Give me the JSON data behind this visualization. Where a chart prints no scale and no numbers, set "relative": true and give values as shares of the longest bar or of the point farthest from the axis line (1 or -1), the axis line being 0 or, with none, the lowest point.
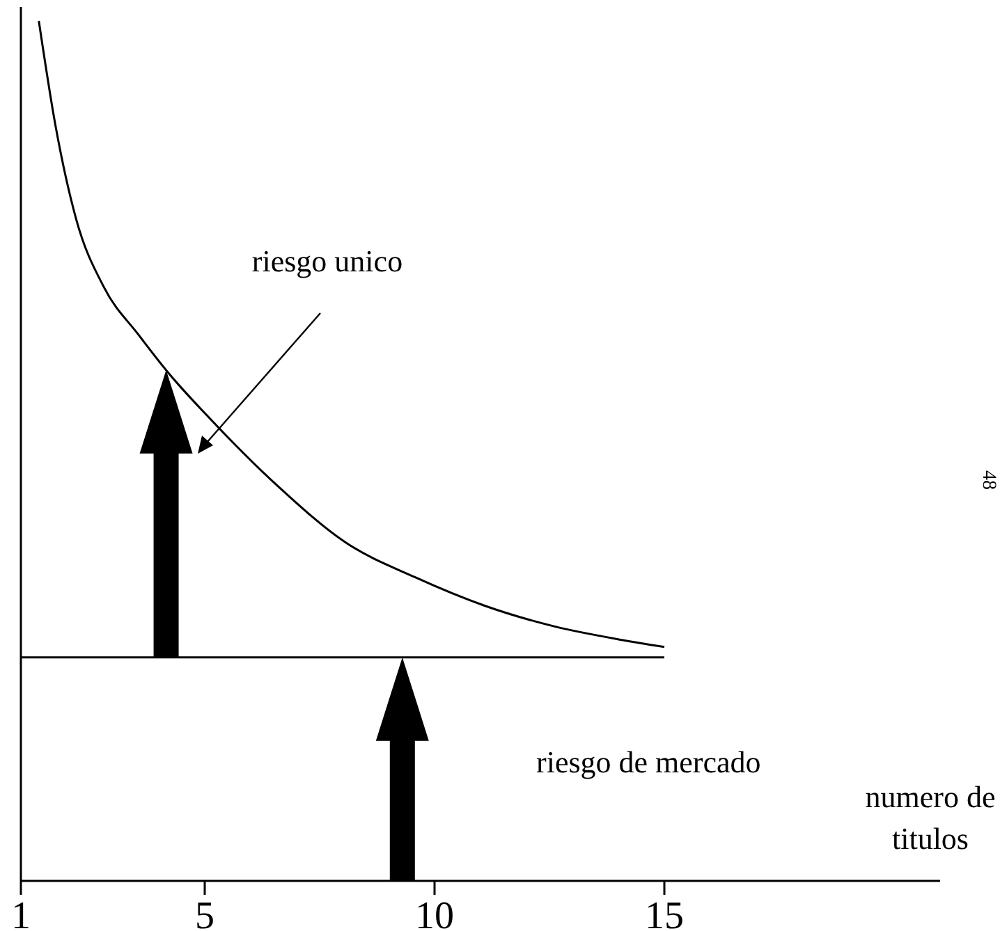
{
  "chart_data": {
    "type": "line",
    "relative": true,
    "xlabel": "numero de titulos",
    "xlim": [
      1,
      21
    ],
    "xticks": [
      1,
      5,
      10,
      15
    ],
    "marker": "none",
    "line_style": "solid",
    "series": [
      {
        "color": "#000000",
        "x": [
          1.39,
          1.75,
          2.2,
          2.81,
          3.56,
          4.22,
          5.07,
          6.57,
          8.08,
          9.58,
          11.09,
          12.6,
          14.1,
          15
        ],
        "values": [
          1.0,
          0.879,
          0.77,
          0.69,
          0.635,
          0.59,
          0.54,
          0.46,
          0.393,
          0.353,
          0.32,
          0.296,
          0.28,
          0.272
        ]
      },
      {
        "color": "#000000",
        "x": [
          1,
          15
        ],
        "values": [
          0.26,
          0.26
        ]
      }
    ],
    "annotations": [
      "riesgo unico",
      "riesgo de mercado",
      "48"
    ]
  }
}
